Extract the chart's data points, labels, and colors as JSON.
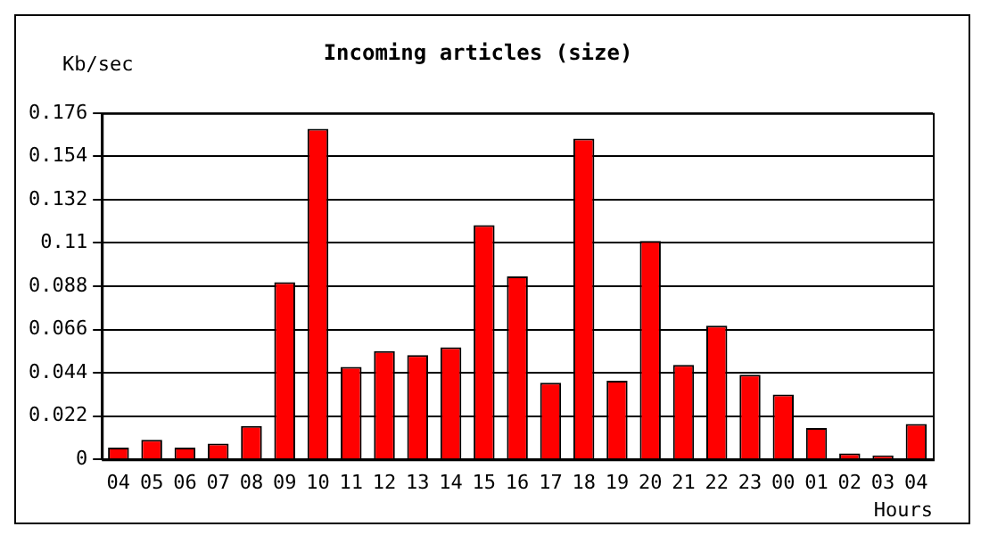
{
  "chart_data": {
    "type": "bar",
    "title": "Incoming articles (size)",
    "ylabel": "Kb/sec",
    "xlabel": "Hours",
    "categories": [
      "04",
      "05",
      "06",
      "07",
      "08",
      "09",
      "10",
      "11",
      "12",
      "13",
      "14",
      "15",
      "16",
      "17",
      "18",
      "19",
      "20",
      "21",
      "22",
      "23",
      "00",
      "01",
      "02",
      "03",
      "04"
    ],
    "values": [
      0.006,
      0.01,
      0.006,
      0.008,
      0.017,
      0.09,
      0.168,
      0.047,
      0.055,
      0.053,
      0.057,
      0.119,
      0.093,
      0.039,
      0.163,
      0.04,
      0.111,
      0.048,
      0.068,
      0.043,
      0.033,
      0.016,
      0.003,
      0.002,
      0.018
    ],
    "color": "#ff0000",
    "ylim": [
      0,
      0.176
    ],
    "yticks": [
      0,
      0.022,
      0.044,
      0.066,
      0.088,
      0.11,
      0.132,
      0.154,
      0.176
    ],
    "grid": "y",
    "legend": false
  }
}
